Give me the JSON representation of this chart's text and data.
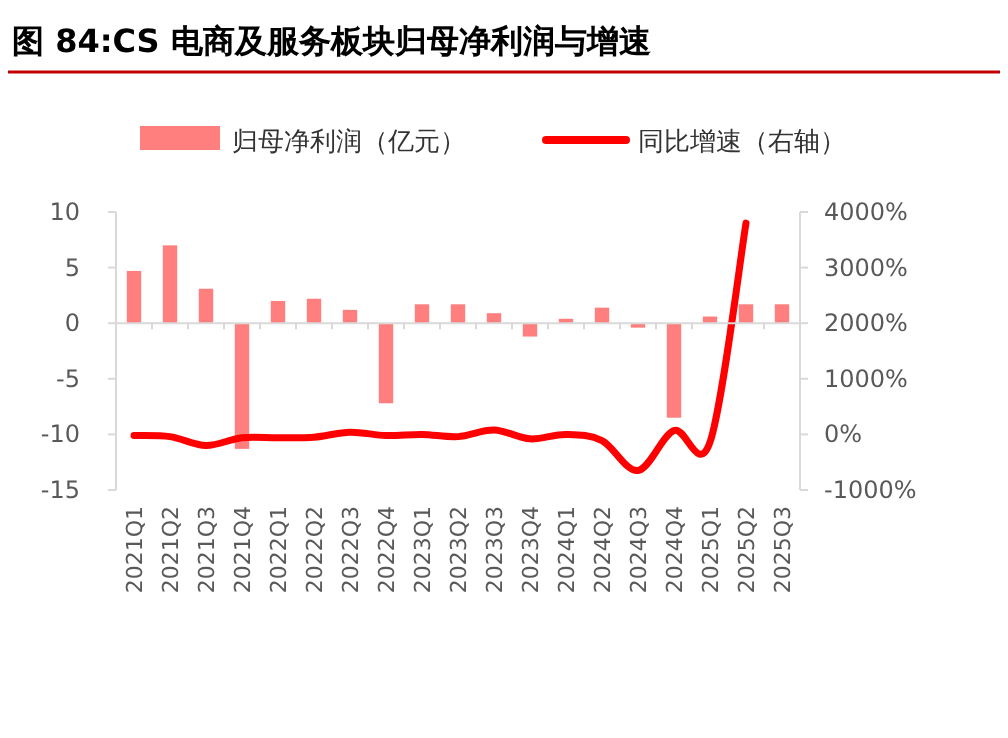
{
  "chart_data": {
    "type": "bar",
    "title": "图 84:CS 电商及服务板块归母净利润与增速",
    "categories": [
      "2021Q1",
      "2021Q2",
      "2021Q3",
      "2021Q4",
      "2022Q1",
      "2022Q2",
      "2022Q3",
      "2022Q4",
      "2023Q1",
      "2023Q2",
      "2023Q3",
      "2023Q4",
      "2024Q1",
      "2024Q2",
      "2024Q3",
      "2024Q4",
      "2025Q1",
      "2025Q2",
      "2025Q3"
    ],
    "series": [
      {
        "name": "归母净利润（亿元）",
        "color": "#ff7f7f",
        "values": [
          4.7,
          7.0,
          3.1,
          -11.3,
          2.0,
          2.2,
          1.2,
          -7.2,
          1.7,
          1.7,
          0.9,
          -1.2,
          0.4,
          1.4,
          -0.4,
          -8.5,
          0.6,
          1.7,
          1.7
        ]
      },
      {
        "name": "同比增速（右轴）",
        "type": "line",
        "axis": "y2",
        "color": "#ff0000",
        "values": [
          -20,
          -40,
          -200,
          -60,
          -60,
          -50,
          40,
          -20,
          0,
          -40,
          80,
          -80,
          0,
          -110,
          -650,
          70,
          -140,
          3800,
          null
        ]
      }
    ],
    "ylim": [
      -15,
      10
    ],
    "yticks": [
      -15,
      -10,
      -5,
      0,
      5,
      10
    ],
    "y2lim": [
      -1000,
      4000
    ],
    "y2ticks": [
      {
        "value": -1000,
        "label": "-1000%"
      },
      {
        "value": 0,
        "label": "0%"
      },
      {
        "value": 1000,
        "label": "1000%"
      },
      {
        "value": 2000,
        "label": "2000%"
      },
      {
        "value": 3000,
        "label": "3000%"
      },
      {
        "value": 4000,
        "label": "4000%"
      }
    ],
    "legend": "top"
  }
}
